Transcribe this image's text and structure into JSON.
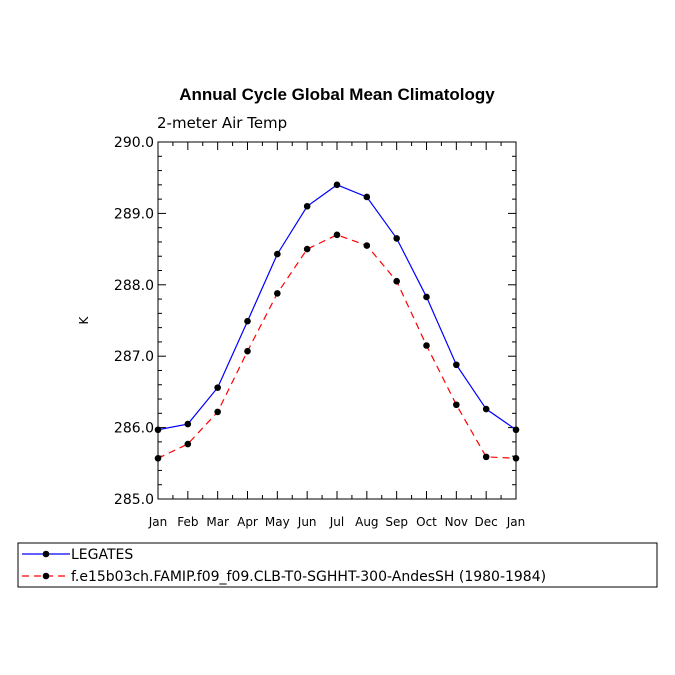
{
  "chart_data": {
    "type": "line",
    "title": "Annual Cycle Global Mean Climatology",
    "subtitle": "2-meter Air Temp",
    "xlabel": "",
    "ylabel": "K",
    "categories": [
      "Jan",
      "Feb",
      "Mar",
      "Apr",
      "May",
      "Jun",
      "Jul",
      "Aug",
      "Sep",
      "Oct",
      "Nov",
      "Dec",
      "Jan"
    ],
    "ylim": [
      285.0,
      290.0
    ],
    "yticks": [
      "285.0",
      "286.0",
      "287.0",
      "288.0",
      "289.0",
      "290.0"
    ],
    "grid": false,
    "legend_position": "bottom",
    "series": [
      {
        "name": "LEGATES",
        "color": "#0000ff",
        "style": "solid",
        "values": [
          285.97,
          286.05,
          286.56,
          287.49,
          288.43,
          289.1,
          289.4,
          289.23,
          288.65,
          287.83,
          286.88,
          286.26,
          285.97
        ]
      },
      {
        "name": "f.e15b03ch.FAMIP.f09_f09.CLB-T0-SGHHT-300-AndesSH (1980-1984)",
        "color": "#ff0000",
        "style": "dashed",
        "values": [
          285.57,
          285.77,
          286.22,
          287.07,
          287.88,
          288.5,
          288.7,
          288.55,
          288.05,
          287.15,
          286.32,
          285.59,
          285.57
        ]
      }
    ]
  }
}
